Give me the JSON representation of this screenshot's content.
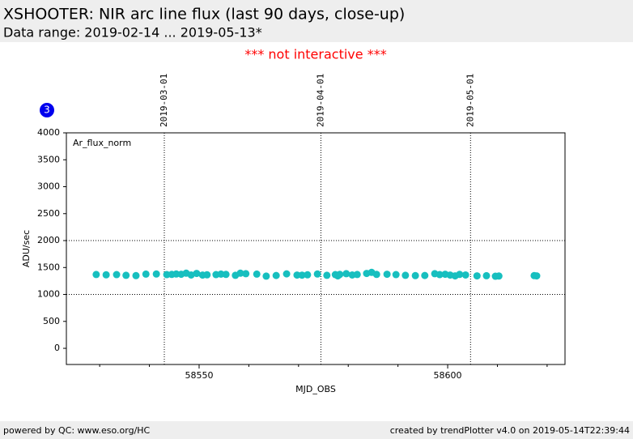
{
  "header": {
    "title": "XSHOOTER: NIR arc line flux (last 90 days, close-up)",
    "subtitle": "Data range: 2019-02-14 ... 2019-05-13*"
  },
  "notice": "*** not interactive ***",
  "badge": "3",
  "footer": {
    "left": "powered by QC: www.eso.org/HC",
    "right": "created by trendPlotter v4.0 on 2019-05-14T22:39:44"
  },
  "chart_data": {
    "type": "scatter",
    "series_label": "Ar_flux_norm",
    "xlabel": "MJD_OBS",
    "ylabel": "ADU/sec",
    "color": "#17bfbf",
    "x": [
      58529.3,
      58531.3,
      58533.4,
      58535.3,
      58537.3,
      58539.3,
      58541.4,
      58543.5,
      58544.5,
      58545.4,
      58546.4,
      58547.4,
      58548.4,
      58549.5,
      58550.7,
      58551.6,
      58553.4,
      58554.4,
      58555.4,
      58557.3,
      58558.3,
      58559.4,
      58561.6,
      58563.5,
      58565.5,
      58567.6,
      58569.7,
      58570.7,
      58571.8,
      58573.8,
      58575.7,
      58577.4,
      58577.9,
      58578.3,
      58579.6,
      58580.8,
      58581.8,
      58583.7,
      58584.7,
      58585.7,
      58587.8,
      58589.6,
      58591.5,
      58593.5,
      58595.4,
      58597.4,
      58598.4,
      58599.5,
      58600.5,
      58601.5,
      58602.4,
      58603.6,
      58605.9,
      58607.8,
      58609.6,
      58610.3,
      58617.4,
      58617.9
    ],
    "values": [
      1370,
      1365,
      1368,
      1355,
      1350,
      1378,
      1380,
      1368,
      1372,
      1380,
      1375,
      1395,
      1362,
      1390,
      1360,
      1365,
      1368,
      1378,
      1372,
      1355,
      1395,
      1385,
      1378,
      1340,
      1352,
      1382,
      1360,
      1358,
      1365,
      1380,
      1355,
      1368,
      1345,
      1372,
      1385,
      1362,
      1370,
      1390,
      1410,
      1372,
      1375,
      1368,
      1355,
      1350,
      1352,
      1385,
      1368,
      1375,
      1360,
      1345,
      1372,
      1362,
      1345,
      1348,
      1338,
      1342,
      1350,
      1345
    ],
    "xlim": [
      58523.3,
      58623.6
    ],
    "xticks": [
      58550,
      58600
    ],
    "xminor_ticks": [
      58530,
      58540,
      58560,
      58570,
      58580,
      58590,
      58610,
      58620
    ],
    "ylim": [
      -300,
      4000
    ],
    "yticks": [
      0,
      500,
      1000,
      1500,
      2000,
      2500,
      3000,
      3500,
      4000
    ],
    "hlines": [
      1000,
      2000
    ],
    "vlines": [
      {
        "value": 58543,
        "label": "2019-03-01"
      },
      {
        "value": 58574.5,
        "label": "2019-04-01"
      },
      {
        "value": 58604.6,
        "label": "2019-05-01"
      }
    ]
  }
}
